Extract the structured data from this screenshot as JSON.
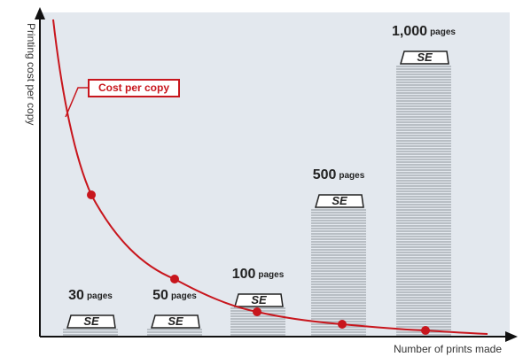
{
  "y_axis_label": "Printing cost per copy",
  "x_axis_label": "Number of prints made",
  "curve_label": "Cost per copy",
  "logo": "SE",
  "stacks": [
    {
      "count": "30",
      "unit": "pages"
    },
    {
      "count": "50",
      "unit": "pages"
    },
    {
      "count": "100",
      "unit": "pages"
    },
    {
      "count": "500",
      "unit": "pages"
    },
    {
      "count": "1,000",
      "unit": "pages"
    }
  ]
}
